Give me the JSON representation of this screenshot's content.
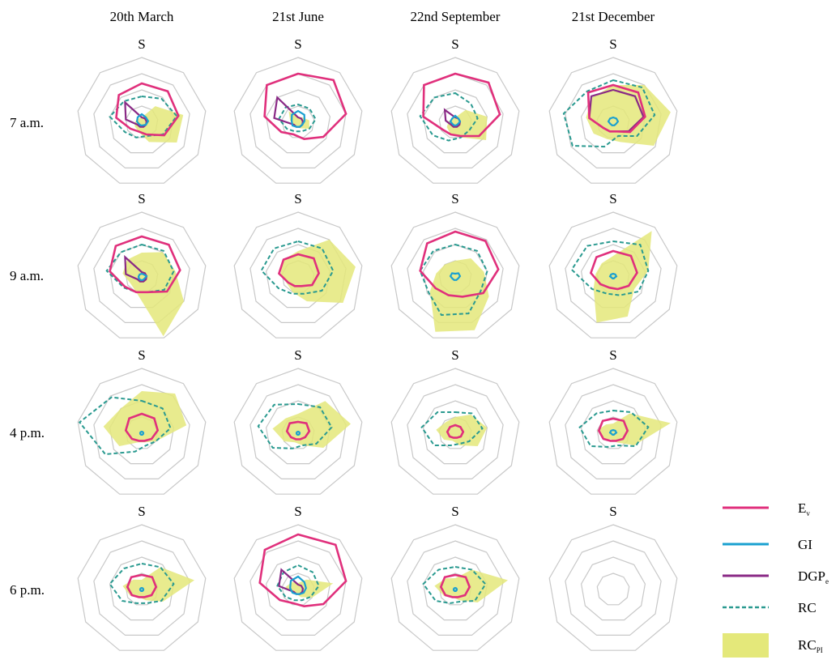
{
  "chart_data": {
    "type": "radar-grid",
    "direction_label": "S",
    "columns": [
      "20th March",
      "21st June",
      "22nd September",
      "21st December"
    ],
    "rows": [
      "7 a.m.",
      "9 a.m.",
      "4 p.m.",
      "6 p.m."
    ],
    "legend": [
      {
        "key": "ev",
        "label": "E",
        "sub": "v",
        "style": "line",
        "color": "#e0307c"
      },
      {
        "key": "gi",
        "label": "GI",
        "sub": "",
        "style": "line",
        "color": "#1aa0d0"
      },
      {
        "key": "dgp",
        "label": "DGP",
        "sub": "e",
        "style": "line",
        "color": "#8a2a86"
      },
      {
        "key": "rc",
        "label": "RC",
        "sub": "",
        "style": "dashed",
        "color": "#2a9a90"
      },
      {
        "key": "rcp",
        "label": "RC",
        "sub": "PI",
        "style": "fill",
        "color": "#e4e87a"
      }
    ],
    "colors": {
      "grid": "#c8c8c8",
      "ev": "#e0307c",
      "gi": "#1aa0d0",
      "dgp": "#8a2a86",
      "rc": "#2a9a90",
      "rcp": "#e4e87a"
    },
    "axes": 9,
    "grid_rings": 4,
    "rmax": 4,
    "cells": [
      [
        {
          "ev": [
            2.4,
            2.5,
            2.3,
            1.6,
            0.8,
            0.6,
            0.8,
            1.6,
            2.2
          ],
          "gi": [
            0.5,
            0.4,
            0.4,
            0.3,
            0.2,
            0.2,
            0.2,
            0.3,
            0.4
          ],
          "dgp": [
            0.3,
            0.3,
            0.3,
            0.3,
            0.3,
            0.3,
            0.3,
            1.0,
            1.6
          ],
          "rc": [
            1.6,
            1.9,
            2.2,
            1.5,
            0.9,
            1.0,
            1.2,
            2.0,
            1.7
          ],
          "rcp": [
            0.3,
            1.3,
            2.6,
            2.5,
            1.3,
            0.6,
            0.5,
            0.4,
            0.3
          ]
        },
        {
          "ev": [
            3.0,
            3.4,
            3.0,
            1.8,
            1.1,
            0.8,
            1.2,
            2.1,
            3.0
          ],
          "gi": [
            0.7,
            0.6,
            0.4,
            0.3,
            0.3,
            0.3,
            0.4,
            0.4,
            0.6
          ],
          "dgp": [
            0.3,
            0.3,
            0.3,
            0.3,
            0.3,
            0.3,
            0.3,
            1.5,
            2.0
          ],
          "rc": [
            1.1,
            1.1,
            1.1,
            0.8,
            0.6,
            0.6,
            0.8,
            1.2,
            1.2
          ],
          "rcp": [
            0.3,
            0.4,
            0.7,
            0.8,
            0.4,
            0.3,
            0.3,
            0.5,
            0.9
          ]
        },
        {
          "ev": [
            3.0,
            3.2,
            2.8,
            1.7,
            0.9,
            0.8,
            0.9,
            2.0,
            3.0
          ],
          "gi": [
            0.4,
            0.3,
            0.3,
            0.2,
            0.2,
            0.2,
            0.2,
            0.3,
            0.3
          ],
          "dgp": [
            0.3,
            0.3,
            0.3,
            0.3,
            0.3,
            0.3,
            0.3,
            0.6,
            1.0
          ],
          "rc": [
            1.8,
            1.5,
            1.4,
            1.0,
            1.0,
            1.2,
            1.6,
            2.2,
            2.0
          ],
          "rcp": [
            0.3,
            1.0,
            2.0,
            2.2,
            1.0,
            0.8,
            0.6,
            0.4,
            0.3
          ]
        },
        {
          "ev": [
            2.3,
            2.4,
            2.0,
            1.2,
            0.6,
            0.6,
            0.7,
            1.5,
            2.4
          ],
          "gi": [
            0.3,
            0.3,
            0.3,
            0.2,
            0.2,
            0.2,
            0.2,
            0.3,
            0.3
          ],
          "dgp": [
            2.0,
            2.1,
            1.9,
            1.1,
            0.6,
            0.6,
            0.7,
            1.5,
            2.1
          ],
          "rc": [
            2.6,
            2.8,
            2.6,
            1.7,
            0.9,
            1.6,
            2.9,
            3.1,
            2.5
          ],
          "rcp": [
            2.3,
            3.0,
            3.6,
            2.9,
            1.3,
            1.1,
            1.4,
            1.7,
            2.0
          ]
        }
      ],
      [
        {
          "ev": [
            2.5,
            2.6,
            2.4,
            1.8,
            1.0,
            1.0,
            1.2,
            2.0,
            2.5
          ],
          "gi": [
            0.2,
            0.2,
            0.3,
            0.2,
            0.2,
            0.2,
            0.2,
            0.2,
            0.2
          ],
          "dgp": [
            0.3,
            0.3,
            0.3,
            0.3,
            0.3,
            0.3,
            0.3,
            1.0,
            1.6
          ],
          "rc": [
            2.0,
            2.1,
            2.0,
            1.6,
            1.0,
            1.0,
            1.3,
            2.2,
            2.0
          ],
          "rcp": [
            1.5,
            2.0,
            2.1,
            3.0,
            3.9,
            1.0,
            0.8,
            1.2,
            1.4
          ]
        },
        {
          "ev": [
            1.4,
            1.5,
            1.3,
            1.0,
            0.6,
            0.6,
            0.7,
            1.2,
            1.4
          ],
          "gi": [
            0.0,
            0.0,
            0.0,
            0.0,
            0.0,
            0.0,
            0.0,
            0.0,
            0.0
          ],
          "dgp": [
            0.0,
            0.0,
            0.0,
            0.0,
            0.0,
            0.0,
            0.0,
            0.0,
            0.0
          ],
          "rc": [
            2.2,
            2.3,
            2.2,
            1.7,
            1.1,
            1.1,
            1.4,
            2.3,
            2.3
          ],
          "rcp": [
            1.6,
            3.0,
            3.6,
            3.2,
            1.6,
            1.0,
            0.8,
            1.1,
            1.4
          ]
        },
        {
          "ev": [
            2.8,
            2.9,
            2.7,
            2.0,
            1.3,
            1.2,
            1.4,
            2.2,
            2.7
          ],
          "gi": [
            0.2,
            0.3,
            0.3,
            0.2,
            0.2,
            0.2,
            0.2,
            0.3,
            0.3
          ],
          "dgp": [
            0.0,
            0.0,
            0.0,
            0.0,
            0.0,
            0.0,
            0.0,
            0.0,
            0.0
          ],
          "rc": [
            2.0,
            2.1,
            2.0,
            1.8,
            2.4,
            2.5,
            1.9,
            2.2,
            2.1
          ],
          "rcp": [
            1.0,
            1.5,
            1.8,
            2.4,
            3.5,
            3.6,
            1.8,
            1.2,
            1.0
          ]
        },
        {
          "ev": [
            1.6,
            1.7,
            1.5,
            1.1,
            0.8,
            0.7,
            0.9,
            1.4,
            1.6
          ],
          "gi": [
            0.2,
            0.2,
            0.2,
            0.1,
            0.1,
            0.1,
            0.1,
            0.2,
            0.2
          ],
          "dgp": [
            0.0,
            0.0,
            0.0,
            0.0,
            0.0,
            0.0,
            0.0,
            0.0,
            0.0
          ],
          "rc": [
            2.2,
            2.6,
            2.2,
            1.8,
            1.2,
            1.1,
            1.5,
            2.6,
            2.5
          ],
          "rcp": [
            1.3,
            3.7,
            2.2,
            1.5,
            2.6,
            3.0,
            1.4,
            1.1,
            1.1
          ]
        }
      ],
      [
        {
          "ev": [
            1.2,
            1.2,
            1.0,
            0.7,
            0.5,
            0.5,
            0.7,
            1.0,
            1.2
          ],
          "gi": [
            0.1,
            0.1,
            0.1,
            0.1,
            0.1,
            0.1,
            0.1,
            0.1,
            0.1
          ],
          "dgp": [
            0.0,
            0.0,
            0.0,
            0.0,
            0.0,
            0.0,
            0.0,
            0.0,
            0.0
          ],
          "rc": [
            2.0,
            2.0,
            1.8,
            1.0,
            0.8,
            1.2,
            2.6,
            3.9,
            2.9
          ],
          "rcp": [
            2.6,
            3.2,
            2.8,
            1.0,
            0.6,
            0.6,
            1.6,
            2.4,
            2.0
          ]
        },
        {
          "ev": [
            0.7,
            0.8,
            0.7,
            0.5,
            0.4,
            0.4,
            0.5,
            0.7,
            0.8
          ],
          "gi": [
            0.1,
            0.1,
            0.1,
            0.1,
            0.1,
            0.1,
            0.1,
            0.1,
            0.1
          ],
          "dgp": [
            0.0,
            0.0,
            0.0,
            0.0,
            0.0,
            0.0,
            0.0,
            0.0,
            0.0
          ],
          "rc": [
            1.8,
            2.1,
            2.1,
            1.3,
            0.8,
            1.0,
            1.8,
            2.5,
            2.3
          ],
          "rcp": [
            1.2,
            2.6,
            3.3,
            1.8,
            0.8,
            0.6,
            1.0,
            1.6,
            1.2
          ]
        },
        {
          "ev": [
            0.5,
            0.5,
            0.5,
            0.4,
            0.3,
            0.3,
            0.4,
            0.5,
            0.5
          ],
          "gi": [
            0.0,
            0.0,
            0.0,
            0.0,
            0.0,
            0.0,
            0.0,
            0.0,
            0.0
          ],
          "dgp": [
            0.0,
            0.0,
            0.0,
            0.0,
            0.0,
            0.0,
            0.0,
            0.0,
            0.0
          ],
          "rc": [
            1.3,
            1.6,
            1.7,
            1.0,
            0.7,
            0.8,
            1.5,
            2.1,
            1.7
          ],
          "rcp": [
            1.0,
            1.5,
            2.0,
            1.6,
            0.8,
            0.5,
            0.8,
            1.2,
            0.9
          ]
        },
        {
          "ev": [
            0.9,
            1.0,
            0.9,
            0.7,
            0.5,
            0.5,
            0.7,
            0.9,
            1.0
          ],
          "gi": [
            0.2,
            0.2,
            0.2,
            0.1,
            0.1,
            0.1,
            0.1,
            0.2,
            0.2
          ],
          "dgp": [
            0.0,
            0.0,
            0.0,
            0.0,
            0.0,
            0.0,
            0.0,
            0.0,
            0.0
          ],
          "rc": [
            1.4,
            1.7,
            2.2,
            1.6,
            0.8,
            0.9,
            1.6,
            2.1,
            1.6
          ],
          "rcp": [
            0.6,
            1.6,
            3.6,
            1.5,
            0.6,
            0.4,
            0.7,
            1.0,
            0.7
          ]
        }
      ],
      [
        {
          "ev": [
            0.9,
            1.0,
            0.9,
            0.7,
            0.5,
            0.5,
            0.7,
            0.9,
            1.0
          ],
          "gi": [
            0.1,
            0.1,
            0.1,
            0.1,
            0.1,
            0.1,
            0.1,
            0.1,
            0.1
          ],
          "dgp": [
            0.0,
            0.0,
            0.0,
            0.0,
            0.0,
            0.0,
            0.0,
            0.0,
            0.0
          ],
          "rc": [
            1.6,
            1.8,
            2.0,
            1.4,
            0.9,
            0.9,
            1.4,
            2.0,
            1.7
          ],
          "rcp": [
            0.6,
            1.8,
            3.3,
            1.5,
            0.7,
            0.5,
            0.8,
            1.2,
            0.8
          ]
        },
        {
          "ev": [
            3.4,
            3.6,
            3.0,
            1.8,
            1.1,
            0.9,
            1.3,
            2.4,
            3.2
          ],
          "gi": [
            0.8,
            0.6,
            0.5,
            0.4,
            0.3,
            0.3,
            0.4,
            0.5,
            0.7
          ],
          "dgp": [
            0.3,
            0.3,
            0.3,
            0.3,
            0.3,
            0.3,
            0.3,
            1.2,
            1.6
          ],
          "rc": [
            1.5,
            1.4,
            1.3,
            0.9,
            0.7,
            0.7,
            0.9,
            1.3,
            1.4
          ],
          "rcp": [
            0.4,
            0.8,
            2.2,
            1.0,
            0.5,
            0.3,
            0.4,
            0.8,
            0.6
          ]
        },
        {
          "ev": [
            0.9,
            1.0,
            0.9,
            0.7,
            0.5,
            0.5,
            0.7,
            0.9,
            1.0
          ],
          "gi": [
            0.1,
            0.1,
            0.1,
            0.1,
            0.1,
            0.1,
            0.1,
            0.1,
            0.1
          ],
          "dgp": [
            0.0,
            0.0,
            0.0,
            0.0,
            0.0,
            0.0,
            0.0,
            0.0,
            0.0
          ],
          "rc": [
            1.4,
            1.6,
            1.9,
            1.4,
            0.8,
            0.9,
            1.4,
            2.0,
            1.6
          ],
          "rcp": [
            0.7,
            1.6,
            3.3,
            1.6,
            0.7,
            0.5,
            0.8,
            1.3,
            0.9
          ]
        },
        {
          "ev": [
            0,
            0,
            0,
            0,
            0,
            0,
            0,
            0,
            0
          ],
          "gi": [
            0,
            0,
            0,
            0,
            0,
            0,
            0,
            0,
            0
          ],
          "dgp": [
            0,
            0,
            0,
            0,
            0,
            0,
            0,
            0,
            0
          ],
          "rc": [
            0,
            0,
            0,
            0,
            0,
            0,
            0,
            0,
            0
          ],
          "rcp": [
            0,
            0,
            0,
            0,
            0,
            0,
            0,
            0,
            0
          ]
        }
      ]
    ]
  }
}
